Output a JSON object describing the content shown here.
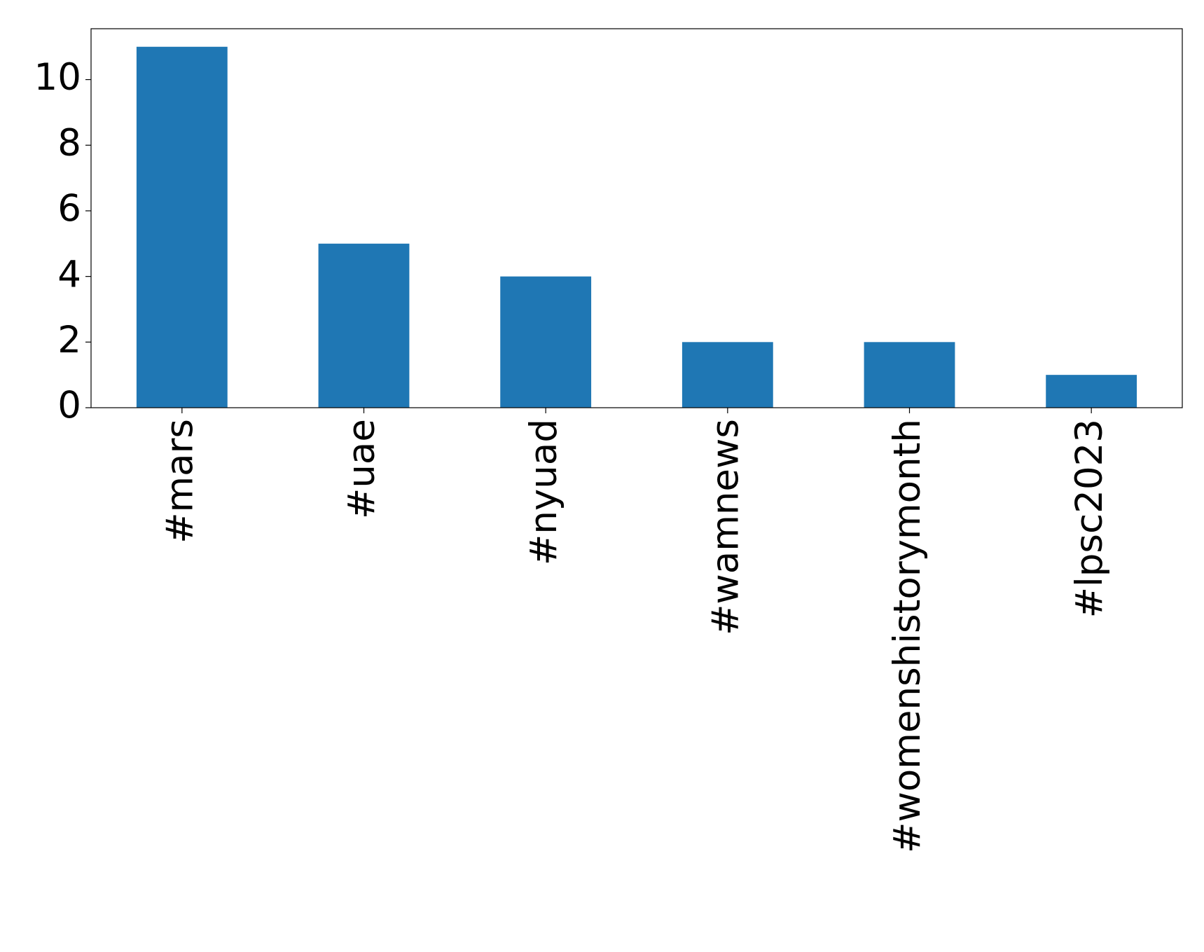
{
  "chart_data": {
    "type": "bar",
    "categories": [
      "#mars",
      "#uae",
      "#nyuad",
      "#wamnews",
      "#womenshistorymonth",
      "#lpsc2023"
    ],
    "values": [
      11,
      5,
      4,
      2,
      2,
      1
    ],
    "color": "#1f77b4",
    "ylim": [
      0,
      11.55
    ],
    "yticks": [
      0,
      2,
      4,
      6,
      8,
      10
    ],
    "grid": false
  }
}
